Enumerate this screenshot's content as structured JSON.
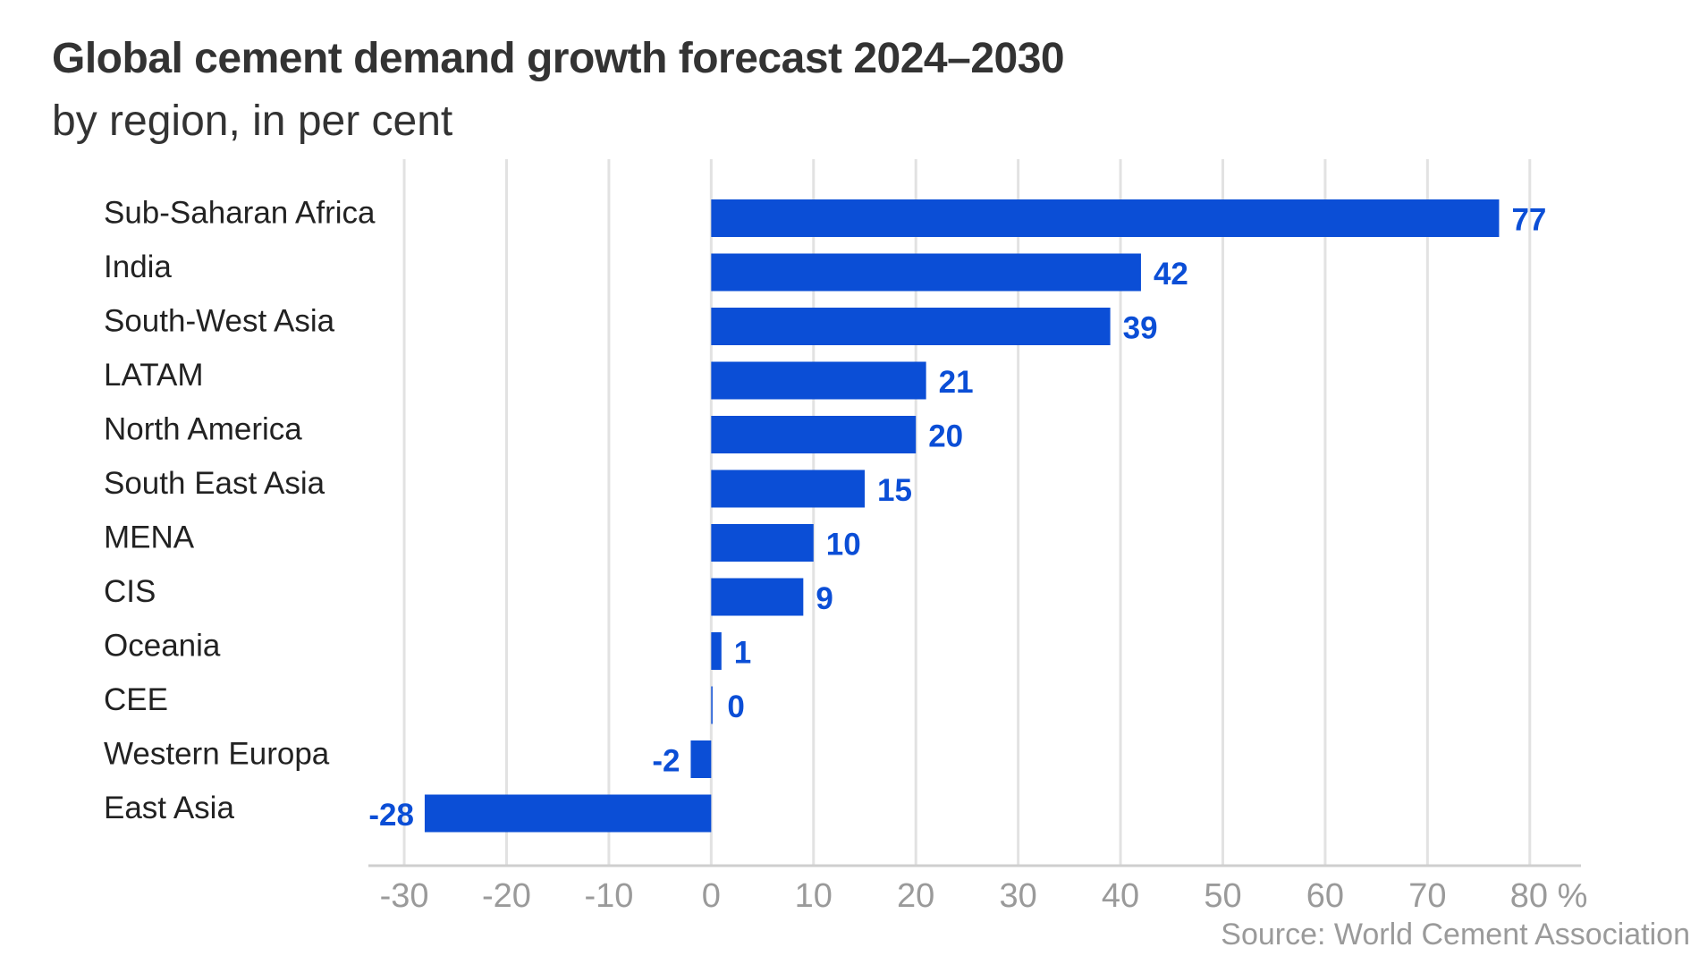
{
  "chart_data": {
    "type": "bar",
    "orientation": "horizontal",
    "title": "Global cement demand growth forecast 2024–2030",
    "subtitle": "by region, in per cent",
    "source": "Source: World Cement Association",
    "categories": [
      "Sub-Saharan Africa",
      "India",
      "South-West Asia",
      "LATAM",
      "North America",
      "South East Asia",
      "MENA",
      "CIS",
      "Oceania",
      "CEE",
      "Western Europa",
      "East Asia"
    ],
    "values": [
      77,
      42,
      39,
      21,
      20,
      15,
      10,
      9,
      1,
      0,
      -2,
      -28
    ],
    "xlim": [
      -33.5,
      85
    ],
    "ticks": [
      -30,
      -20,
      -10,
      0,
      10,
      20,
      30,
      40,
      50,
      60,
      70,
      80
    ],
    "tick_labels": [
      "-30",
      "-20",
      "-10",
      "0",
      "10",
      "20",
      "30",
      "40",
      "50",
      "60",
      "70",
      "80 %"
    ],
    "grid": true,
    "bar_color": "#0b4ed6",
    "grid_color": "#e2e2e2",
    "axis_color": "#cfcfcf"
  }
}
